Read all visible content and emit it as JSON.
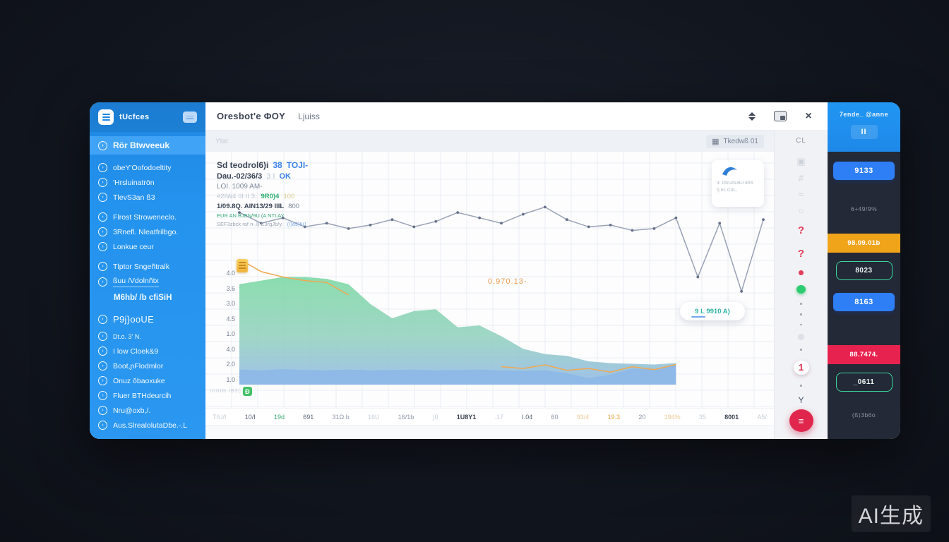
{
  "window": {
    "header": {
      "title": "Oresbot'e ΦOY",
      "tab": "Ljuiss"
    },
    "toolbar": {
      "placeholder": "Ytar",
      "date_button": "Tkedwß 01"
    }
  },
  "sidebar": {
    "brand": "tUcfces",
    "items": [
      {
        "label": "Rör Btwveeuk",
        "variant": "active"
      },
      {
        "label": "obeY'Oofodoeltity"
      },
      {
        "label": "'Hrsluinatrön"
      },
      {
        "label": "TlevS3an ß3"
      },
      {
        "label": "Flrost Stroweneclo.",
        "gap": true
      },
      {
        "label": "3Rnefl. Nleatfrilbgo."
      },
      {
        "label": "Lonkue ceur"
      },
      {
        "label": "Tlptor Sngeñtralk",
        "gap": true
      },
      {
        "label": "ßuu /Vdolnñtx",
        "variant": "underline"
      },
      {
        "label": "M6hb/ /b cfiSiH",
        "variant": "header"
      },
      {
        "label": "P9j}ooUE",
        "variant": "large",
        "gap": true
      },
      {
        "label": "Dt.o. 3' N.",
        "variant": "small"
      },
      {
        "label": "I low Cloek&9"
      },
      {
        "label": "Boot,ɲFlodmlor"
      },
      {
        "label": "Onuz ŏbaoxuke"
      },
      {
        "label": "Fluer BTHdeurcih"
      },
      {
        "label": "Nru@oxb,/."
      },
      {
        "label": "Aus.SlrealolutaDbe.-.L"
      }
    ]
  },
  "info_block": {
    "lines": [
      [
        {
          "text": "Sd teodrol6)i",
          "tone": "dark"
        },
        {
          "text": "38",
          "tone": "blue"
        },
        {
          "text": "TOJI-",
          "tone": "blue"
        }
      ],
      [
        {
          "text": "Dau.-02/36/3",
          "tone": "dark"
        },
        {
          "text": "3 I",
          "tone": "faint"
        },
        {
          "text": "OK",
          "tone": "blue"
        }
      ],
      [
        {
          "text": "LOI. 1009 AM-",
          "tone": "slate"
        }
      ],
      [
        {
          "text": "#2IW4 III II 3:",
          "tone": "faint"
        },
        {
          "text": "9R0)4",
          "tone": "green"
        },
        {
          "text": "100",
          "tone": "yellow"
        }
      ],
      [
        {
          "text": "1/09.8Q. AlN13/29 IIIL",
          "tone": "dark"
        },
        {
          "text": "800",
          "tone": "slate"
        }
      ],
      [
        {
          "text": "EUR AN BJEN/9U (A NTLAY",
          "tone": "greensm"
        }
      ],
      [
        {
          "text": "SEF3zbck raf n-.I) E3rgJb/y.",
          "tone": "graysm"
        },
        {
          "text": "(I)a9)II()",
          "tone": "bluesm"
        }
      ]
    ]
  },
  "chart_data": {
    "type": "area",
    "x": [
      0,
      1,
      2,
      3,
      4,
      5,
      6,
      7,
      8,
      9,
      10,
      11,
      12,
      13,
      14,
      15,
      16,
      17,
      18,
      19,
      20,
      21,
      22,
      23,
      24
    ],
    "ylim": [
      1.1,
      7.2
    ],
    "grid": true,
    "annotation": "0.970.13-",
    "series": [
      {
        "name": "green-area",
        "kind": "area",
        "fill": "gradient-green",
        "values": [
          3.9,
          4.0,
          4.1,
          4.1,
          4.05,
          3.9,
          3.35,
          2.95,
          3.15,
          3.2,
          2.7,
          2.75,
          2.45,
          2.1,
          1.95,
          1.9,
          1.75,
          1.7,
          1.68,
          1.66,
          1.7,
          null,
          null,
          null,
          null
        ]
      },
      {
        "name": "blue-area",
        "kind": "area",
        "fill": "#8fb9e6",
        "values": [
          1.52,
          1.5,
          1.53,
          1.51,
          1.5,
          1.52,
          1.5,
          1.51,
          1.52,
          1.5,
          1.51,
          1.52,
          1.5,
          1.49,
          1.5,
          1.42,
          1.28,
          1.38,
          1.55,
          1.52,
          1.68,
          null,
          null,
          null,
          null
        ]
      },
      {
        "name": "orange-line",
        "kind": "line",
        "stroke": "#f0a850",
        "values": [
          4.6,
          4.25,
          4.1,
          4.0,
          3.95,
          3.6,
          null,
          null,
          null,
          null,
          null,
          null,
          1.6,
          1.55,
          1.65,
          1.5,
          1.55,
          1.45,
          1.6,
          1.52,
          1.66,
          null,
          null,
          null,
          null
        ]
      },
      {
        "name": "gray-line",
        "kind": "line",
        "stroke": "#99a2b5",
        "marker": true,
        "values": [
          5.9,
          5.6,
          5.75,
          5.5,
          5.6,
          5.45,
          5.55,
          5.7,
          5.5,
          5.65,
          5.9,
          5.75,
          5.6,
          5.85,
          6.05,
          5.7,
          5.5,
          5.55,
          5.4,
          5.45,
          5.75,
          4.1,
          5.6,
          3.7,
          5.7
        ]
      }
    ],
    "y_ticks": [
      "4.0",
      "3.6",
      "3.0",
      "4.5",
      "1.0",
      "4.0",
      "2.0",
      "1.0"
    ],
    "x_ticks": [
      {
        "label": "TIU/I",
        "tone": "faint"
      },
      {
        "label": "10/I",
        "tone": "dark"
      },
      {
        "label": "19d",
        "tone": "green"
      },
      {
        "label": "691",
        "tone": "dark"
      },
      {
        "label": "31Ω.b",
        "tone": "mid"
      },
      {
        "label": "16U",
        "tone": "faint"
      },
      {
        "label": "16/1b",
        "tone": "mid"
      },
      {
        "label": ")0",
        "tone": "faint"
      },
      {
        "label": "1U8Y1",
        "tone": "bold"
      },
      {
        "label": ".17",
        "tone": "faint"
      },
      {
        "label": "I.04",
        "tone": "dark"
      },
      {
        "label": "60",
        "tone": "mid"
      },
      {
        "label": "93/4",
        "tone": "faintorange"
      },
      {
        "label": "19.3",
        "tone": "orange"
      },
      {
        "label": "20",
        "tone": "mid"
      },
      {
        "label": "194%",
        "tone": "faintorange"
      },
      {
        "label": "35",
        "tone": "faint"
      },
      {
        "label": "8001",
        "tone": "bold"
      },
      {
        "label": "A5/",
        "tone": "faint"
      }
    ]
  },
  "overlays": {
    "tooltip": "9 L 9910 A)",
    "card_lines": [
      "3: DSUAU6U 80S",
      "I) IrL C3L,"
    ],
    "badge_prefix": "IIIIIIG IB3(",
    "badge_label": "Ð"
  },
  "strip": {
    "items": [
      {
        "type": "label",
        "text": "CL"
      },
      {
        "type": "ghost",
        "glyph": "▣",
        "name": "copy-icon"
      },
      {
        "type": "ghost",
        "glyph": "#",
        "name": "grid-icon"
      },
      {
        "type": "ghost",
        "glyph": "≈",
        "name": "waves-icon"
      },
      {
        "type": "ghost",
        "glyph": "○",
        "name": "circle-icon"
      },
      {
        "type": "qmark",
        "text": "?"
      },
      {
        "type": "qmark",
        "text": "?"
      },
      {
        "type": "reddot"
      },
      {
        "type": "greendot"
      },
      {
        "type": "dot"
      },
      {
        "type": "dot"
      },
      {
        "type": "dot"
      },
      {
        "type": "ghostdot"
      },
      {
        "type": "dot"
      },
      {
        "type": "badge",
        "text": "1"
      },
      {
        "type": "dot"
      },
      {
        "type": "filter",
        "glyph": "Y"
      },
      {
        "type": "fab",
        "glyph": "≡"
      }
    ]
  },
  "right_panel": {
    "title": "7ende_ @anne",
    "pause": "II",
    "blocks": [
      {
        "type": "button-blue",
        "label": "9133"
      },
      {
        "type": "text",
        "label": "6+49/9%"
      },
      {
        "type": "band-orange",
        "label": "98.09.01b"
      },
      {
        "type": "button-outline",
        "label": "8023"
      },
      {
        "type": "button-blue",
        "label": "8163"
      },
      {
        "type": "band-red",
        "label": "88.7474."
      },
      {
        "type": "button-outline",
        "label": "_0611"
      },
      {
        "type": "text",
        "label": "(ß)3b6o"
      }
    ]
  },
  "colors": {
    "sidebar_blue": "#2493ee",
    "accent_blue": "#2e7ef5",
    "band_orange": "#f0a41a",
    "band_red": "#e8224e",
    "outline_teal": "#3ad6a0",
    "green_dot": "#2ecc71",
    "alert_red": "#e23d5a",
    "chart_green": "#7fd9a6",
    "chart_blue": "#8fb9e6",
    "chart_orange": "#f0a850",
    "chart_gray": "#99a2b5"
  },
  "watermark": "AI生成"
}
